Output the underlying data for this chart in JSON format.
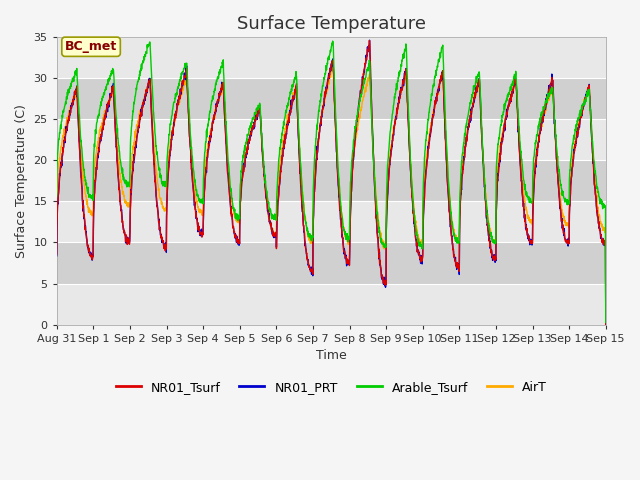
{
  "title": "Surface Temperature",
  "ylabel": "Surface Temperature (C)",
  "xlabel": "Time",
  "annotation": "BC_met",
  "ylim": [
    0,
    35
  ],
  "legend": [
    "NR01_Tsurf",
    "NR01_PRT",
    "Arable_Tsurf",
    "AirT"
  ],
  "colors": {
    "NR01_Tsurf": "#dd0000",
    "NR01_PRT": "#0000cc",
    "Arable_Tsurf": "#00cc00",
    "AirT": "#ffaa00"
  },
  "plot_bg": "#dcdcdc",
  "fig_bg": "#f5f5f5",
  "band_light": "#e8e8e8",
  "band_dark": "#d0d0d0",
  "grid_color": "#ffffff",
  "yticks": [
    0,
    5,
    10,
    15,
    20,
    25,
    30,
    35
  ],
  "xtick_labels": [
    "Aug 31",
    "Sep 1",
    "Sep 2",
    "Sep 3",
    "Sep 4",
    "Sep 5",
    "Sep 6",
    "Sep 7",
    "Sep 8",
    "Sep 9",
    "Sep 10",
    "Sep 11",
    "Sep 12",
    "Sep 13",
    "Sep 14",
    "Sep 15"
  ],
  "title_fontsize": 13,
  "axis_fontsize": 9,
  "tick_fontsize": 8,
  "legend_fontsize": 9,
  "annotation_fontsize": 9,
  "daily_mins_NR01": [
    8.2,
    10.0,
    9.5,
    11.0,
    10.0,
    11.0,
    6.5,
    7.5,
    5.0,
    8.0,
    7.0,
    8.0,
    10.0,
    10.0,
    10.0
  ],
  "daily_maxs_NR01": [
    29.0,
    29.0,
    30.0,
    31.0,
    29.5,
    26.5,
    29.0,
    32.5,
    34.5,
    31.0,
    31.0,
    30.0,
    30.0,
    30.0,
    29.0
  ],
  "daily_mins_green": [
    15.5,
    17.0,
    17.0,
    15.0,
    13.0,
    13.0,
    10.5,
    10.5,
    9.5,
    9.5,
    10.0,
    10.0,
    15.0,
    15.0,
    14.5
  ],
  "daily_maxs_green": [
    31.0,
    31.0,
    34.5,
    32.0,
    32.0,
    27.0,
    30.5,
    34.5,
    32.0,
    34.0,
    34.0,
    31.0,
    30.5,
    29.0,
    28.5
  ],
  "daily_mins_air": [
    13.5,
    14.5,
    14.0,
    13.5,
    12.5,
    11.0,
    10.0,
    10.0,
    9.5,
    10.0,
    10.0,
    10.0,
    12.5,
    12.0,
    11.5
  ],
  "daily_maxs_air": [
    28.5,
    28.5,
    29.5,
    30.0,
    29.0,
    26.5,
    29.0,
    31.5,
    30.5,
    30.5,
    30.5,
    29.5,
    29.5,
    29.0,
    29.0
  ]
}
